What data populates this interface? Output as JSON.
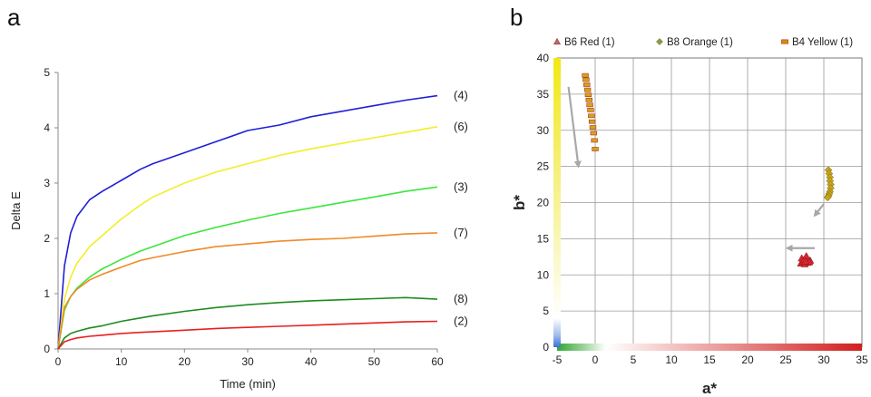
{
  "panels": {
    "left_label": "a",
    "right_label": "b"
  },
  "chart_data": [
    {
      "type": "line",
      "panel": "a",
      "xlabel": "Time (min)",
      "ylabel": "Delta E",
      "xlim": [
        0,
        60
      ],
      "ylim": [
        0,
        5
      ],
      "xticks": [
        0,
        10,
        20,
        30,
        40,
        50,
        60
      ],
      "yticks": [
        0,
        1,
        2,
        3,
        4,
        5
      ],
      "grid": false,
      "series": [
        {
          "label": "(4)",
          "color": "#1f1fd6",
          "x": [
            0,
            1,
            2,
            3,
            5,
            7,
            10,
            13,
            15,
            20,
            25,
            30,
            35,
            40,
            45,
            50,
            55,
            60
          ],
          "y": [
            0,
            1.5,
            2.1,
            2.4,
            2.7,
            2.85,
            3.05,
            3.25,
            3.35,
            3.55,
            3.75,
            3.95,
            4.05,
            4.2,
            4.3,
            4.4,
            4.5,
            4.58
          ]
        },
        {
          "label": "(6)",
          "color": "#f2ee2a",
          "x": [
            0,
            1,
            2,
            3,
            5,
            7,
            10,
            13,
            15,
            20,
            25,
            30,
            35,
            40,
            45,
            50,
            55,
            60
          ],
          "y": [
            0,
            0.9,
            1.3,
            1.55,
            1.85,
            2.05,
            2.35,
            2.6,
            2.75,
            3.0,
            3.2,
            3.35,
            3.5,
            3.62,
            3.72,
            3.82,
            3.92,
            4.02
          ]
        },
        {
          "label": "(3)",
          "color": "#3ce63c",
          "x": [
            0,
            1,
            2,
            3,
            5,
            7,
            10,
            13,
            15,
            20,
            25,
            30,
            35,
            40,
            45,
            50,
            55,
            60
          ],
          "y": [
            0,
            0.7,
            0.95,
            1.1,
            1.3,
            1.45,
            1.62,
            1.77,
            1.85,
            2.05,
            2.2,
            2.33,
            2.45,
            2.55,
            2.65,
            2.75,
            2.85,
            2.93
          ]
        },
        {
          "label": "(7)",
          "color": "#f08a28",
          "x": [
            0,
            1,
            2,
            3,
            5,
            7,
            10,
            13,
            15,
            20,
            25,
            30,
            35,
            40,
            45,
            50,
            55,
            60
          ],
          "y": [
            0,
            0.75,
            0.95,
            1.08,
            1.25,
            1.35,
            1.48,
            1.6,
            1.65,
            1.76,
            1.85,
            1.9,
            1.95,
            1.98,
            2.0,
            2.04,
            2.08,
            2.1
          ]
        },
        {
          "label": "(8)",
          "color": "#1e8c1e",
          "x": [
            0,
            1,
            2,
            3,
            5,
            7,
            10,
            13,
            15,
            20,
            25,
            30,
            35,
            40,
            45,
            50,
            55,
            60
          ],
          "y": [
            0,
            0.2,
            0.28,
            0.32,
            0.38,
            0.42,
            0.5,
            0.56,
            0.6,
            0.68,
            0.75,
            0.8,
            0.84,
            0.87,
            0.89,
            0.91,
            0.93,
            0.9
          ]
        },
        {
          "label": "(2)",
          "color": "#e62020",
          "x": [
            0,
            1,
            2,
            3,
            5,
            7,
            10,
            13,
            15,
            20,
            25,
            30,
            35,
            40,
            45,
            50,
            55,
            60
          ],
          "y": [
            0,
            0.13,
            0.17,
            0.2,
            0.23,
            0.25,
            0.28,
            0.3,
            0.31,
            0.34,
            0.37,
            0.39,
            0.41,
            0.43,
            0.45,
            0.47,
            0.49,
            0.5
          ]
        }
      ]
    },
    {
      "type": "scatter",
      "panel": "b",
      "xlabel": "a*",
      "ylabel": "b*",
      "xlim": [
        -5,
        35
      ],
      "ylim": [
        0,
        40
      ],
      "xticks": [
        -5,
        0,
        5,
        10,
        15,
        20,
        25,
        30,
        35
      ],
      "yticks": [
        0,
        5,
        10,
        15,
        20,
        25,
        30,
        35,
        40
      ],
      "grid": true,
      "legend_position": "top",
      "series": [
        {
          "name": "B6 Red (1)",
          "marker": "triangle",
          "color": "#d9262e",
          "legend_color": "#b86a6a",
          "x": [
            27.0,
            27.3,
            27.6,
            27.9,
            28.2,
            27.1,
            27.5,
            27.8,
            28.1,
            27.4,
            27.7,
            27.6
          ],
          "y": [
            11.6,
            11.9,
            12.2,
            11.7,
            12.0,
            12.3,
            11.5,
            12.4,
            11.8,
            12.1,
            12.6,
            11.9
          ]
        },
        {
          "name": "B8 Orange (1)",
          "marker": "diamond",
          "color": "#c9a21a",
          "legend_color": "#8d9a4a",
          "x": [
            30.6,
            30.7,
            30.8,
            30.8,
            30.9,
            30.9,
            30.8,
            30.7,
            30.6,
            30.5
          ],
          "y": [
            24.5,
            24.0,
            23.5,
            23.0,
            22.5,
            22.0,
            21.5,
            21.2,
            20.9,
            20.7
          ]
        },
        {
          "name": "B4 Yellow (1)",
          "marker": "square",
          "color": "#d4a31c",
          "legend_color": "#d88a0a",
          "x": [
            -1.3,
            -1.2,
            -1.1,
            -1.0,
            -0.9,
            -0.8,
            -0.7,
            -0.6,
            -0.5,
            -0.4,
            -0.3,
            -0.2,
            -0.1,
            0.0
          ],
          "y": [
            37.6,
            37.0,
            36.3,
            35.6,
            34.9,
            34.2,
            33.5,
            32.8,
            32.0,
            31.2,
            30.4,
            29.6,
            28.6,
            27.4
          ]
        }
      ],
      "arrows": [
        {
          "from": [
            -3.5,
            36
          ],
          "to": [
            -2.2,
            25
          ]
        },
        {
          "from": [
            30.0,
            19.8
          ],
          "to": [
            28.8,
            18.2
          ]
        },
        {
          "from": [
            28.8,
            13.7
          ],
          "to": [
            25.2,
            13.7
          ]
        }
      ]
    }
  ]
}
